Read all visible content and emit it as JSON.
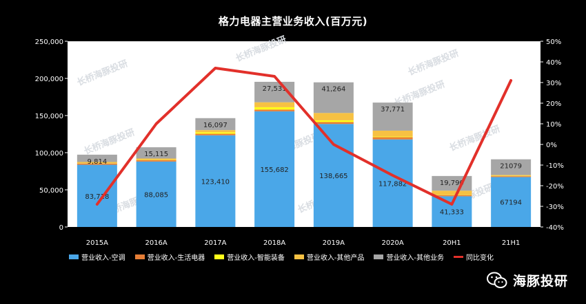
{
  "chart_data": {
    "type": "bar",
    "title": "格力电器主营业务收入(百万元)",
    "categories": [
      "2015A",
      "2016A",
      "2017A",
      "2018A",
      "2019A",
      "2020A",
      "20H1",
      "21H1"
    ],
    "series": [
      {
        "name": "营业收入-空调",
        "color": "#4aa7e8",
        "values": [
          83718,
          88085,
          123410,
          155682,
          138665,
          117882,
          41333,
          67194
        ],
        "labels": [
          "83,718",
          "88,085",
          "123,410",
          "155,682",
          "138,665",
          "117,882",
          "41,333",
          "67194"
        ]
      },
      {
        "name": "营业收入-生活电器",
        "color": "#e67e36",
        "values": [
          1800,
          1800,
          2100,
          2400,
          2600,
          3000,
          1500,
          1200
        ]
      },
      {
        "name": "营业收入-智能装备",
        "color": "#ffff1a",
        "values": [
          300,
          300,
          2000,
          3100,
          2300,
          800,
          200,
          400
        ]
      },
      {
        "name": "营业收入-其他产品",
        "color": "#f6c143",
        "values": [
          1700,
          2000,
          2900,
          6700,
          9900,
          8000,
          5800,
          1200
        ]
      },
      {
        "name": "营业收入-其他业务",
        "color": "#a6a6a6",
        "values": [
          9814,
          15115,
          16097,
          27531,
          41264,
          37771,
          19790,
          21079
        ],
        "labels": [
          "9,814",
          "15,115",
          "16,097",
          "27,531",
          "41,264",
          "37,771",
          "19,790",
          "21079"
        ]
      }
    ],
    "line_series": {
      "name": "同比变化",
      "color": "#e2302a",
      "values": [
        -29,
        10,
        37,
        33,
        0,
        -15,
        -29,
        31
      ]
    },
    "y_left": {
      "ylim": [
        0,
        250000
      ],
      "ticks": [
        "0",
        "50,000",
        "100,000",
        "150,000",
        "200,000",
        "250,000"
      ]
    },
    "y_right": {
      "ylim": [
        -40,
        50
      ],
      "ticks": [
        "-40%",
        "-30%",
        "-20%",
        "-10%",
        "0%",
        "10%",
        "20%",
        "30%",
        "40%",
        "50%"
      ]
    },
    "grid": false,
    "legend": "bottom"
  },
  "watermark": "长桥海豚投研",
  "brand": {
    "text": "海豚投研"
  }
}
